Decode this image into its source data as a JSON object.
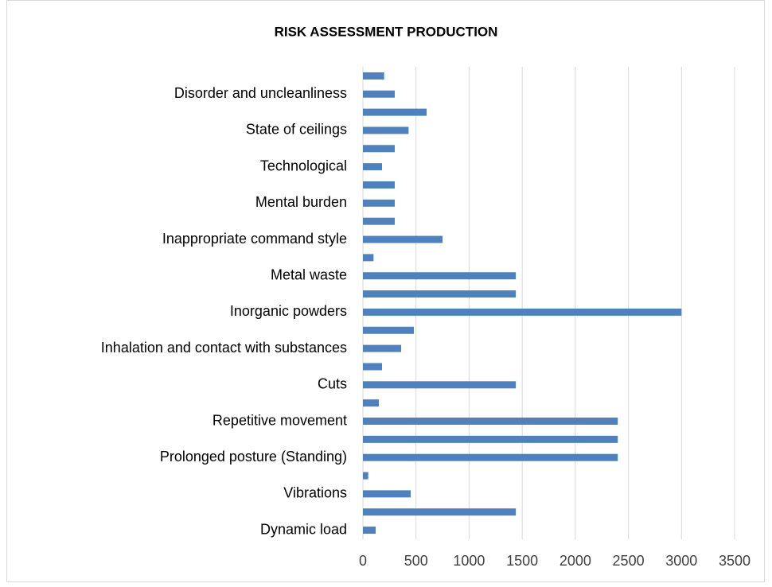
{
  "chart_data": {
    "type": "hbar",
    "title": "RISK ASSESSMENT PRODUCTION",
    "categories": [
      "Dynamic load",
      null,
      "Vibrations",
      null,
      "Prolonged posture (Standing)",
      null,
      "Repetitive movement",
      null,
      "Cuts",
      null,
      "Inhalation and contact with substances",
      null,
      "Inorganic powders",
      null,
      "Metal waste",
      null,
      "Inappropriate command style",
      null,
      "Mental burden",
      null,
      "Technological",
      null,
      "State of ceilings",
      null,
      "Disorder and uncleanliness",
      null
    ],
    "values": [
      120,
      1440,
      450,
      50,
      2400,
      2400,
      2400,
      150,
      1440,
      180,
      360,
      480,
      3000,
      1440,
      1440,
      100,
      750,
      300,
      300,
      300,
      180,
      300,
      430,
      600,
      300,
      200
    ],
    "color": "#4f81bd",
    "xlim": [
      0,
      3500
    ],
    "xticks": [
      0,
      500,
      1000,
      1500,
      2000,
      2500,
      3000,
      3500
    ],
    "grid": true
  }
}
